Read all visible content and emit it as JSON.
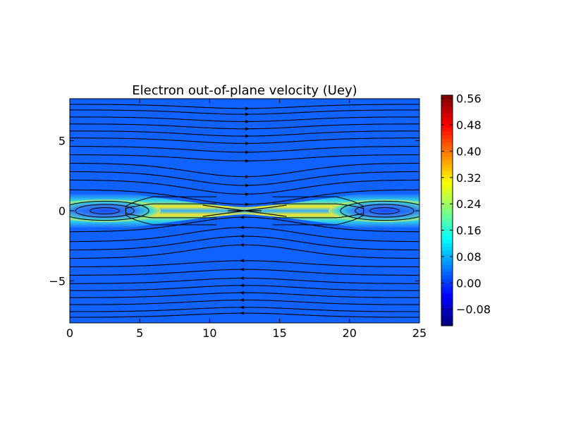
{
  "chart_data": {
    "type": "heatmap",
    "title": "Electron out-of-plane velocity (Uey)",
    "xlabel": "",
    "ylabel": "",
    "xlim": [
      0,
      25
    ],
    "ylim": [
      -8,
      8
    ],
    "x_ticks": [
      0,
      5,
      10,
      15,
      20,
      25
    ],
    "x_tick_labels": [
      "0",
      "5",
      "10",
      "15",
      "20",
      "25"
    ],
    "y_ticks": [
      5,
      0,
      -5
    ],
    "y_tick_labels": [
      "5",
      "0",
      "−5"
    ],
    "colorbar": {
      "colormap": "jet",
      "range": [
        -0.13,
        0.57
      ],
      "ticks": [
        0.56,
        0.48,
        0.4,
        0.32,
        0.24,
        0.16,
        0.08,
        0.0,
        -0.08
      ],
      "tick_labels": [
        "0.56",
        "0.48",
        "0.40",
        "0.32",
        "0.24",
        "0.16",
        "0.08",
        "0.00",
        "−0.08"
      ]
    },
    "field_description": {
      "background_value": 0.02,
      "current_sheet_center_y": 0,
      "current_sheet_half_width": 1.2,
      "sheet_peak_value": 0.32,
      "x_point": [
        12.5,
        0
      ],
      "o_points": [
        [
          2.5,
          0
        ],
        [
          22.5,
          0
        ]
      ]
    },
    "streamlines": {
      "color": "#000000",
      "upper_y": [
        1.5,
        2.2,
        2.8,
        3.4,
        4.0,
        4.6,
        5.2,
        5.7,
        6.2,
        6.7,
        7.2,
        7.6
      ],
      "lower_y": [
        -1.5,
        -2.2,
        -2.8,
        -3.4,
        -4.0,
        -4.6,
        -5.2,
        -5.7,
        -6.2,
        -6.7,
        -7.2,
        -7.6
      ],
      "island_rings": [
        0.35,
        0.7,
        1.05
      ],
      "separatrix_x": 12.5
    },
    "grid": false,
    "legend": "none"
  }
}
